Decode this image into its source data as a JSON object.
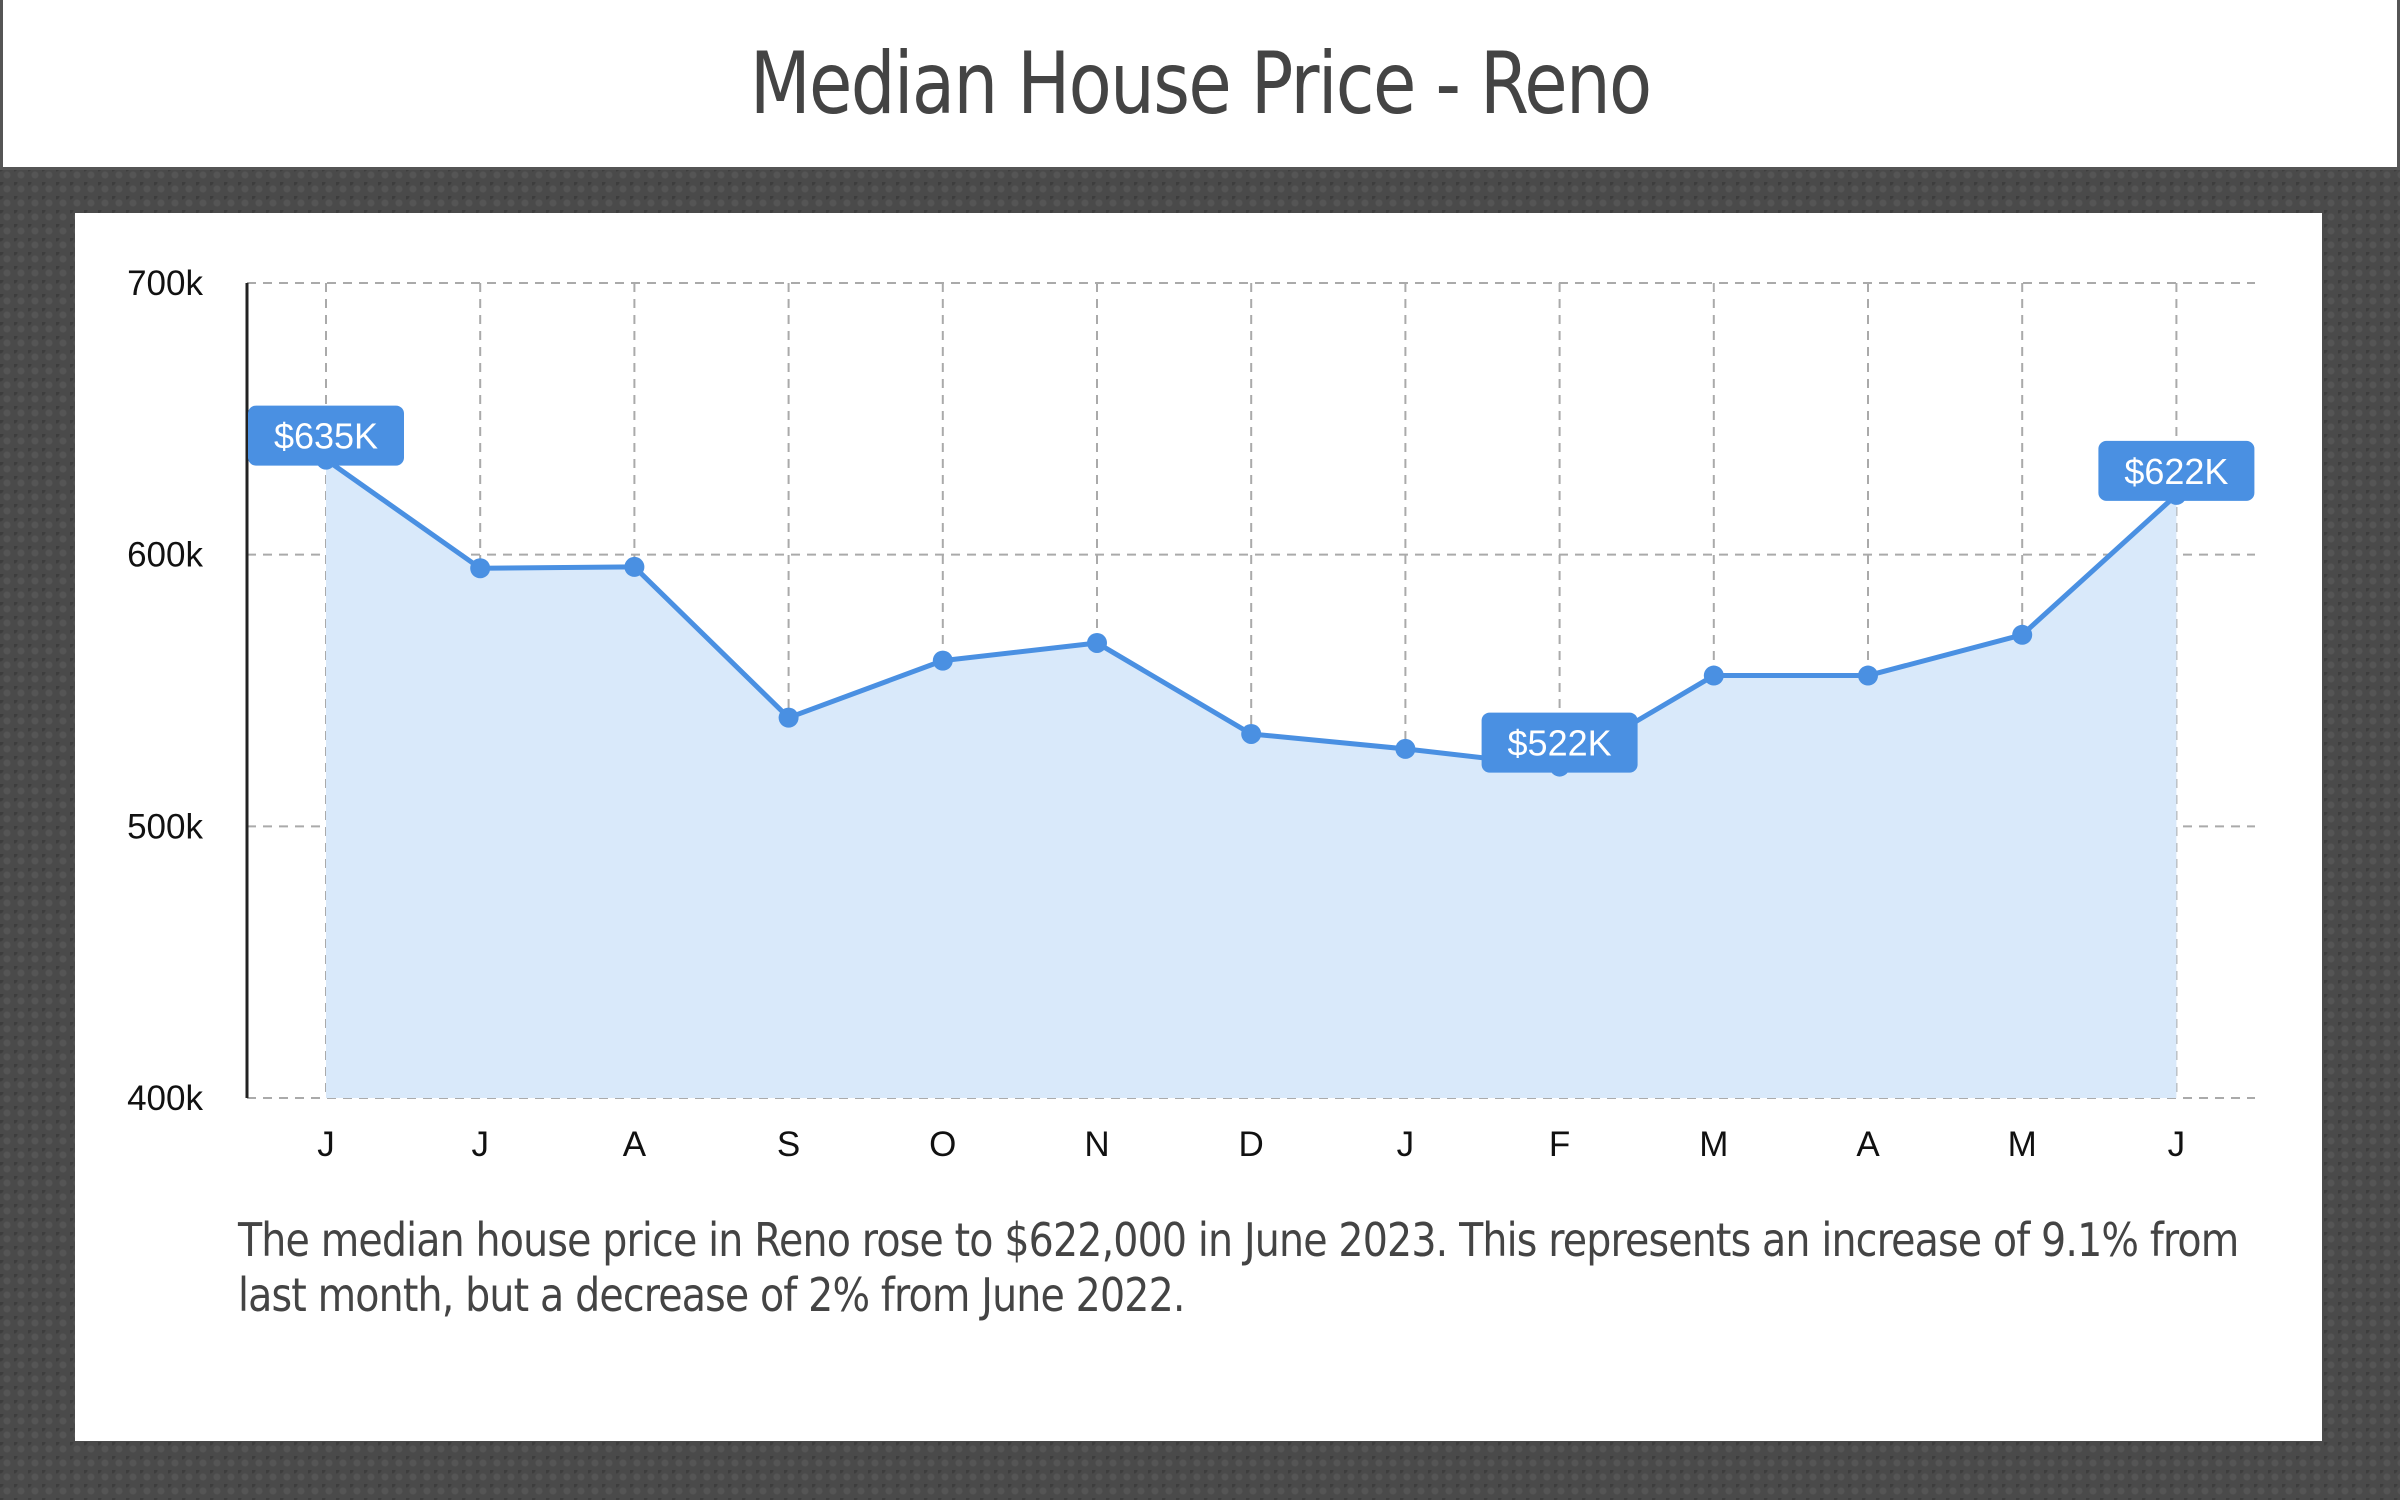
{
  "title": "Median House Price - Reno",
  "caption": "The median house price in Reno rose to $622,000 in June 2023.  This represents an increase of 9.1% from last month, but a decrease of 2% from June 2022.",
  "colors": {
    "line": "#4a90e2",
    "fill": "#d9e9fa",
    "callout": "#4a90e2",
    "grid": "#aaaaaa",
    "background": "#4a4a4a"
  },
  "chart_data": {
    "type": "area",
    "categories": [
      "J",
      "J",
      "A",
      "S",
      "O",
      "N",
      "D",
      "J",
      "F",
      "M",
      "A",
      "M",
      "J"
    ],
    "values": [
      635000,
      595000,
      595500,
      540000,
      561000,
      567500,
      534000,
      528500,
      522000,
      555500,
      555500,
      570500,
      622000
    ],
    "ylim": [
      400000,
      700000
    ],
    "yticks": [
      400000,
      500000,
      600000,
      700000
    ],
    "ytick_labels": [
      "400k",
      "500k",
      "600k",
      "700k"
    ],
    "grid": true,
    "callouts": [
      {
        "index": 0,
        "label": "$635K"
      },
      {
        "index": 8,
        "label": "$522K"
      },
      {
        "index": 12,
        "label": "$622K"
      }
    ]
  }
}
